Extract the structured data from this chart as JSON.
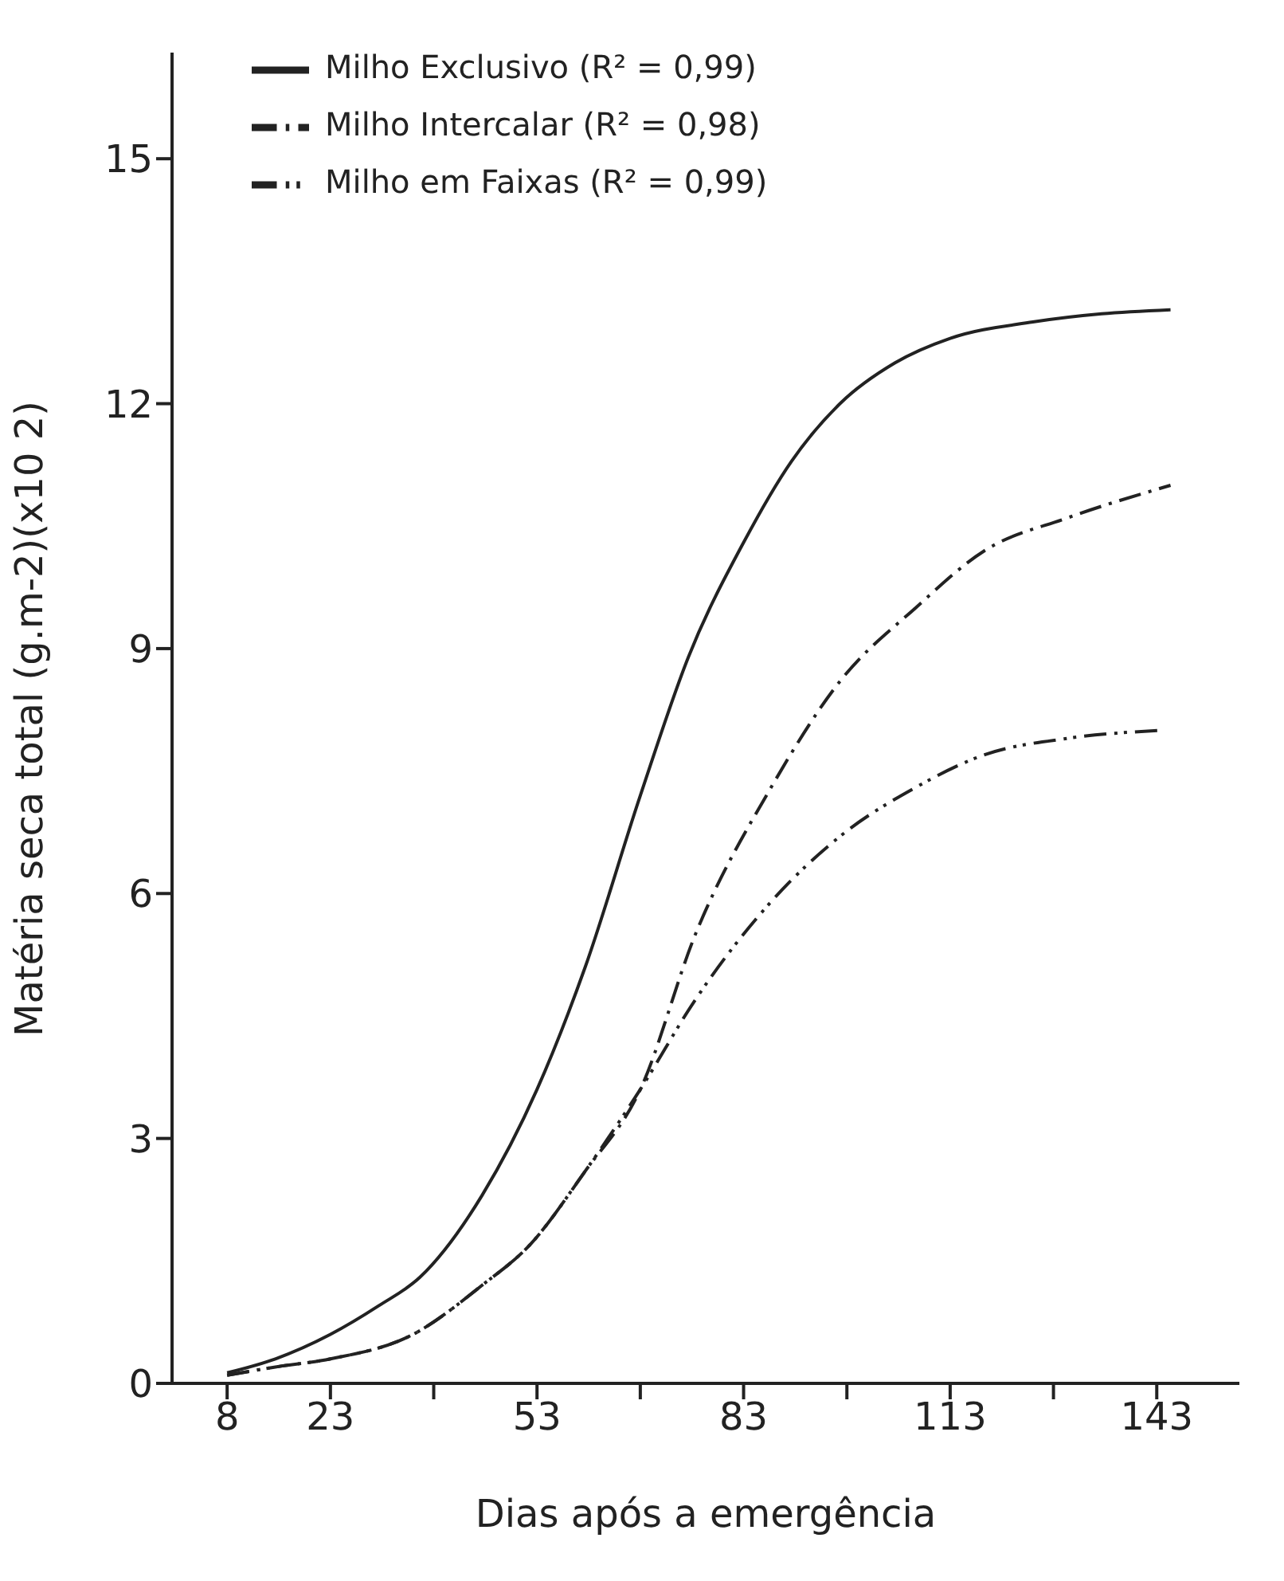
{
  "chart_data": {
    "type": "line",
    "xlabel": "Dias após a emergência",
    "ylabel": "Matéria seca total (g.m-2)(x10 2)",
    "xlim": [
      0,
      155
    ],
    "xticks": [
      8,
      23,
      {
        "value": 38,
        "label": null
      },
      53,
      {
        "value": 68,
        "label": null
      },
      83,
      {
        "value": 98,
        "label": null
      },
      113,
      {
        "value": 128,
        "label": null
      },
      143
    ],
    "ylim": [
      0,
      16.3
    ],
    "yticks": [
      0,
      3,
      6,
      9,
      12,
      15
    ],
    "grid": false,
    "legend": "top left",
    "marker": "none",
    "series": [
      {
        "name": "Milho Exclusivo (R² = 0,99)",
        "color": "#222222",
        "line_style": "solid",
        "x": [
          8,
          15,
          23,
          30,
          36,
          45,
          53,
          60,
          68,
          75,
          83,
          90,
          97,
          105,
          113,
          125,
          135,
          145
        ],
        "values": [
          0.13,
          0.3,
          0.6,
          0.95,
          1.3,
          2.3,
          3.6,
          5.1,
          7.2,
          8.9,
          10.3,
          11.3,
          12.0,
          12.5,
          12.8,
          13.0,
          13.1,
          13.15
        ]
      },
      {
        "name": "Milho Intercalar (R² = 0,98)",
        "color": "#222222",
        "line_style": "dashdot",
        "x": [
          8,
          15,
          23,
          35,
          45,
          52,
          60,
          68,
          76,
          87,
          97,
          108,
          118,
          130,
          145
        ],
        "values": [
          0.1,
          0.2,
          0.3,
          0.6,
          1.2,
          1.7,
          2.6,
          3.6,
          5.5,
          7.3,
          8.6,
          9.5,
          10.2,
          10.6,
          11.0
        ]
      },
      {
        "name": "Milho em Faixas (R² = 0,99)",
        "color": "#222222",
        "line_style": "dashdotdot",
        "x": [
          8,
          15,
          23,
          35,
          45,
          52,
          60,
          68,
          76,
          87,
          97,
          108,
          118,
          130,
          144
        ],
        "values": [
          0.1,
          0.2,
          0.3,
          0.6,
          1.2,
          1.7,
          2.6,
          3.6,
          4.7,
          5.9,
          6.7,
          7.3,
          7.7,
          7.9,
          8.0
        ]
      }
    ]
  }
}
